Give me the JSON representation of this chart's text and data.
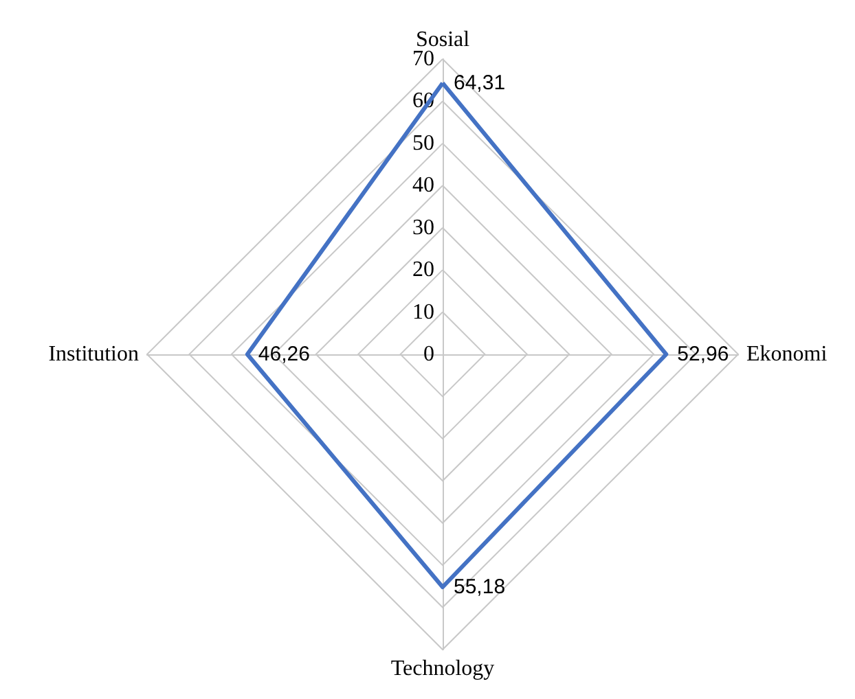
{
  "chart_data": {
    "type": "radar",
    "categories": [
      "Sosial",
      "Ekonomi",
      "Technology",
      "Institution"
    ],
    "series": [
      {
        "color": "#4472c4",
        "values": [
          64.31,
          52.96,
          55.18,
          46.26
        ],
        "value_labels": [
          "64,31",
          "52,96",
          "55,18",
          "46,26"
        ]
      }
    ],
    "ylim": [
      0,
      70
    ],
    "yticks": [
      0,
      10,
      20,
      30,
      40,
      50,
      60,
      70
    ],
    "grid": true,
    "marker": "none"
  }
}
